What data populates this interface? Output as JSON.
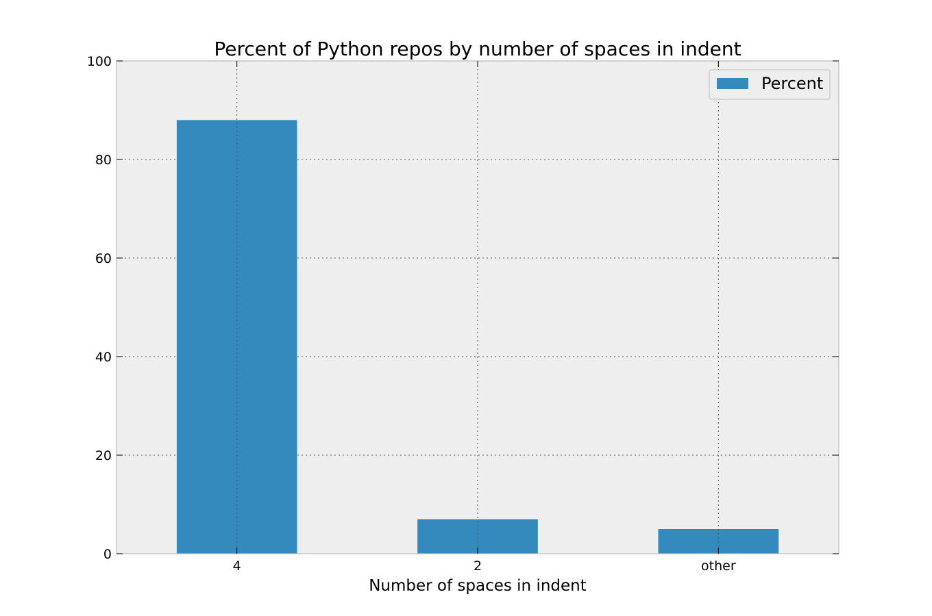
{
  "chart_data": {
    "type": "bar",
    "title": "Percent of Python repos by number of spaces in indent",
    "xlabel": "Number of spaces in indent",
    "ylabel": "",
    "categories": [
      "4",
      "2",
      "other"
    ],
    "series": [
      {
        "name": "Percent",
        "values": [
          88,
          7,
          5
        ],
        "color": "#348abd"
      }
    ],
    "ylim": [
      0,
      100
    ],
    "yticks": [
      0,
      20,
      40,
      60,
      80,
      100
    ],
    "grid": true,
    "legend": "top-right",
    "colors": {
      "plot_background": "#eeeeee",
      "grid": "#555555",
      "bar": "#348abd"
    }
  }
}
